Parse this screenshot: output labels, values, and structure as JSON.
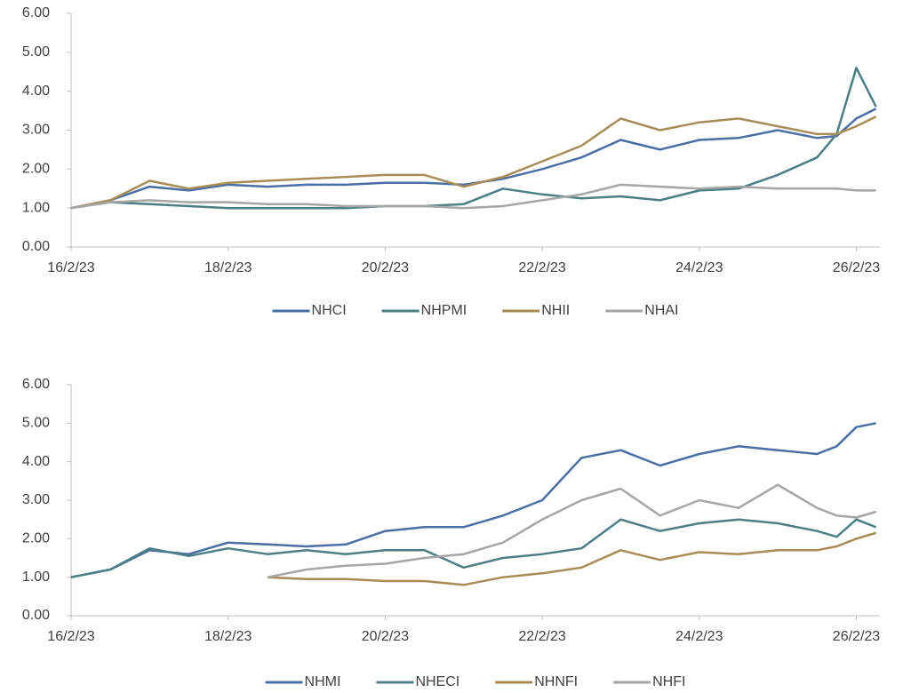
{
  "chart_data": [
    {
      "type": "line",
      "x": [
        0,
        0.5,
        1,
        1.5,
        2,
        2.5,
        3,
        3.5,
        4,
        4.5,
        5,
        5.5,
        6,
        6.5,
        7,
        7.5,
        8,
        8.5,
        9,
        9.5,
        9.75,
        10,
        10.25
      ],
      "xlim": [
        0,
        10.3
      ],
      "xticks": [
        {
          "value": 0,
          "label": "16/2/23"
        },
        {
          "value": 2,
          "label": "18/2/23"
        },
        {
          "value": 4,
          "label": "20/2/23"
        },
        {
          "value": 6,
          "label": "22/2/23"
        },
        {
          "value": 8,
          "label": "24/2/23"
        },
        {
          "value": 10,
          "label": "26/2/23"
        }
      ],
      "ylim": [
        0,
        6
      ],
      "yticks": [
        {
          "value": 0,
          "label": "0.00"
        },
        {
          "value": 1,
          "label": "1.00"
        },
        {
          "value": 2,
          "label": "2.00"
        },
        {
          "value": 3,
          "label": "3.00"
        },
        {
          "value": 4,
          "label": "4.00"
        },
        {
          "value": 5,
          "label": "5.00"
        },
        {
          "value": 6,
          "label": "6.00"
        }
      ],
      "legend": "bottom",
      "series": [
        {
          "name": "NHCI",
          "color": "#4a6fa5",
          "values": [
            1.0,
            1.2,
            1.55,
            1.45,
            1.6,
            1.55,
            1.6,
            1.6,
            1.65,
            1.65,
            1.6,
            1.75,
            2.0,
            2.3,
            2.75,
            2.5,
            2.75,
            2.8,
            3.0,
            2.8,
            2.85,
            3.3,
            3.55
          ]
        },
        {
          "name": "NHPMI",
          "color": "#4a7f86",
          "values": [
            1.0,
            1.15,
            1.1,
            1.05,
            1.0,
            1.0,
            1.0,
            1.0,
            1.05,
            1.05,
            1.1,
            1.5,
            1.35,
            1.25,
            1.3,
            1.2,
            1.45,
            1.5,
            1.85,
            2.3,
            2.9,
            4.6,
            3.6
          ]
        },
        {
          "name": "NHII",
          "color": "#a88c57",
          "values": [
            1.0,
            1.2,
            1.7,
            1.5,
            1.65,
            1.7,
            1.75,
            1.8,
            1.85,
            1.85,
            1.55,
            1.8,
            2.2,
            2.6,
            3.3,
            3.0,
            3.2,
            3.3,
            3.1,
            2.9,
            2.9,
            3.1,
            3.35
          ]
        },
        {
          "name": "NHAI",
          "color": "#a6a6a6",
          "values": [
            1.0,
            1.15,
            1.2,
            1.15,
            1.15,
            1.1,
            1.1,
            1.05,
            1.05,
            1.05,
            1.0,
            1.05,
            1.2,
            1.35,
            1.6,
            1.55,
            1.5,
            1.55,
            1.5,
            1.5,
            1.5,
            1.45,
            1.45
          ]
        }
      ]
    },
    {
      "type": "line",
      "x": [
        0,
        0.5,
        1,
        1.5,
        2,
        2.5,
        3,
        3.5,
        4,
        4.5,
        5,
        5.5,
        6,
        6.5,
        7,
        7.5,
        8,
        8.5,
        9,
        9.5,
        9.75,
        10,
        10.25
      ],
      "xlim": [
        0,
        10.3
      ],
      "xticks": [
        {
          "value": 0,
          "label": "16/2/23"
        },
        {
          "value": 2,
          "label": "18/2/23"
        },
        {
          "value": 4,
          "label": "20/2/23"
        },
        {
          "value": 6,
          "label": "22/2/23"
        },
        {
          "value": 8,
          "label": "24/2/23"
        },
        {
          "value": 10,
          "label": "26/2/23"
        }
      ],
      "ylim": [
        0,
        6
      ],
      "yticks": [
        {
          "value": 0,
          "label": "0.00"
        },
        {
          "value": 1,
          "label": "1.00"
        },
        {
          "value": 2,
          "label": "2.00"
        },
        {
          "value": 3,
          "label": "3.00"
        },
        {
          "value": 4,
          "label": "4.00"
        },
        {
          "value": 5,
          "label": "5.00"
        },
        {
          "value": 6,
          "label": "6.00"
        }
      ],
      "legend": "bottom",
      "series": [
        {
          "name": "NHMI",
          "color": "#4a6fa5",
          "values": [
            1.0,
            1.2,
            1.7,
            1.6,
            1.9,
            1.85,
            1.8,
            1.85,
            2.2,
            2.3,
            2.3,
            2.6,
            3.0,
            4.1,
            4.3,
            3.9,
            4.2,
            4.4,
            4.3,
            4.2,
            4.4,
            4.9,
            5.0
          ]
        },
        {
          "name": "NHECI",
          "color": "#4a7f86",
          "values": [
            1.0,
            1.2,
            1.75,
            1.55,
            1.75,
            1.6,
            1.7,
            1.6,
            1.7,
            1.7,
            1.25,
            1.5,
            1.6,
            1.75,
            2.5,
            2.2,
            2.4,
            2.5,
            2.4,
            2.2,
            2.05,
            2.5,
            2.3
          ]
        },
        {
          "name": "NHNFI",
          "color": "#a88c57",
          "values": [
            null,
            null,
            null,
            null,
            null,
            1.0,
            0.95,
            0.95,
            0.9,
            0.9,
            0.8,
            1.0,
            1.1,
            1.25,
            1.7,
            1.45,
            1.65,
            1.6,
            1.7,
            1.7,
            1.8,
            2.0,
            2.15
          ]
        },
        {
          "name": "NHFI",
          "color": "#a6a6a6",
          "values": [
            null,
            null,
            null,
            null,
            null,
            1.0,
            1.2,
            1.3,
            1.35,
            1.5,
            1.6,
            1.9,
            2.5,
            3.0,
            3.3,
            2.6,
            3.0,
            2.8,
            3.4,
            2.8,
            2.6,
            2.55,
            2.7
          ]
        }
      ]
    }
  ]
}
